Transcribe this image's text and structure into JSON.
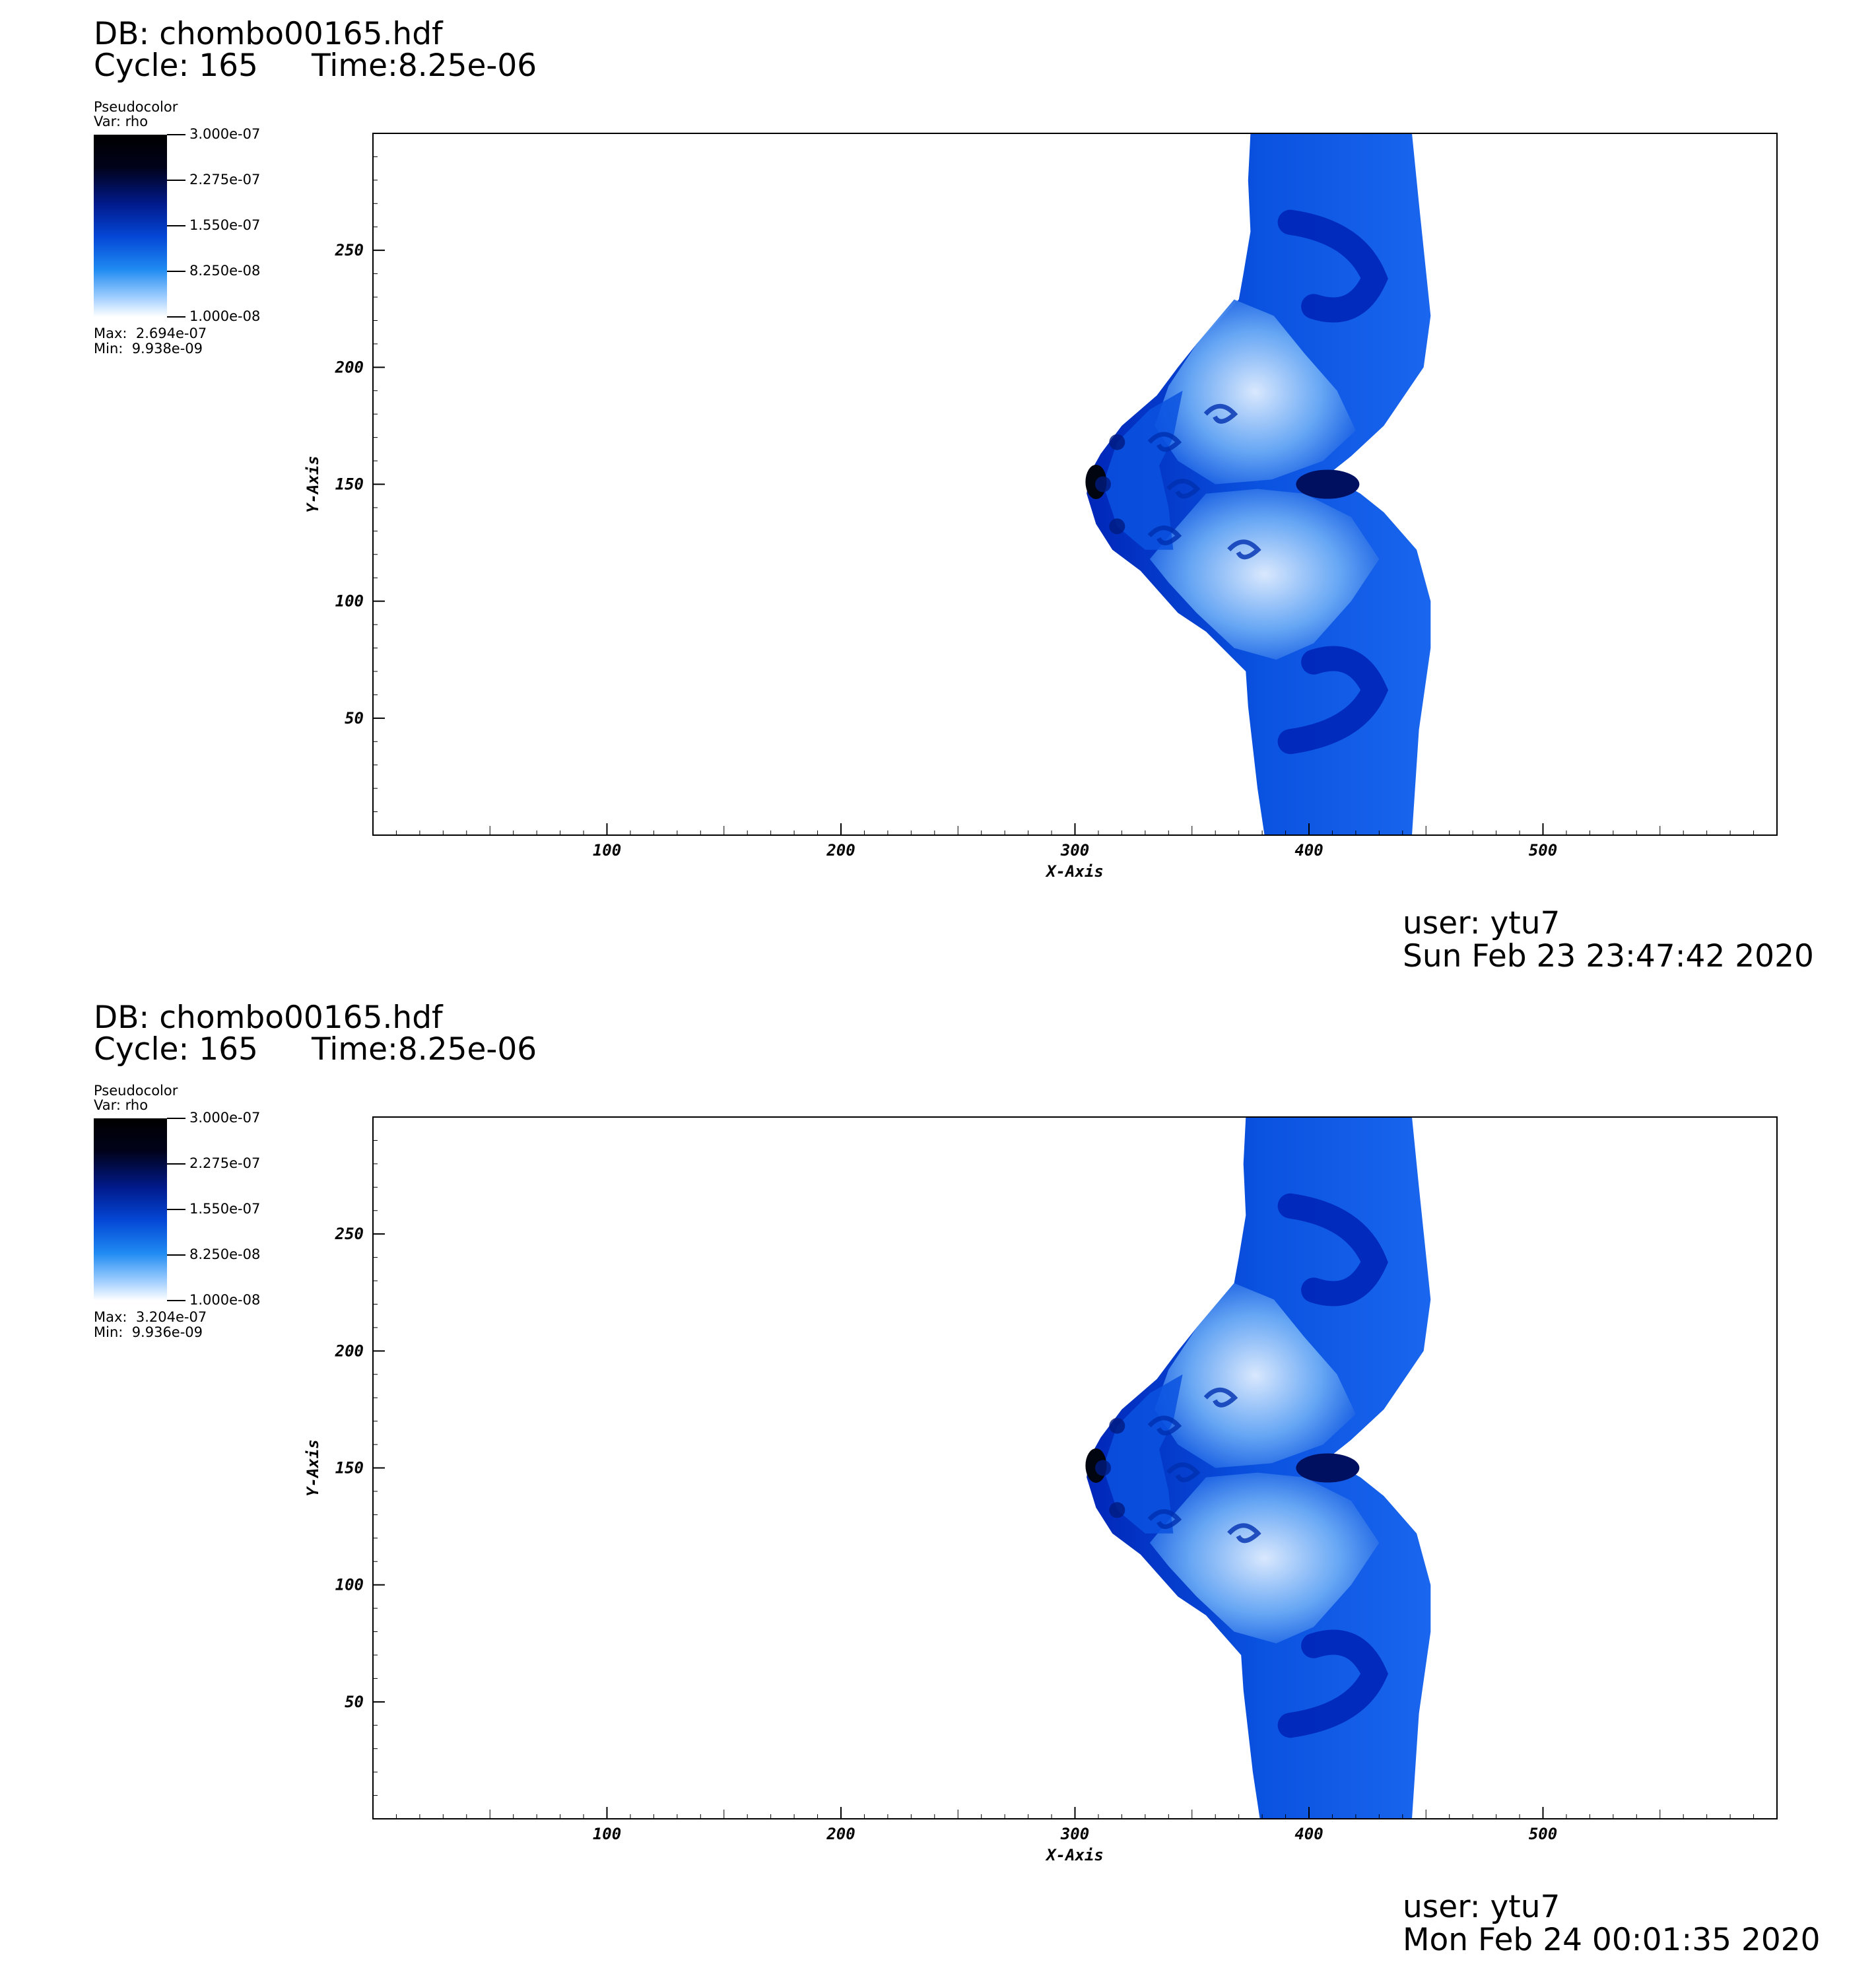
{
  "panels": [
    {
      "db": "DB: chombo00165.hdf",
      "cycle": "Cycle: 165",
      "time": "Time:8.25e-06",
      "legend": {
        "plot_type": "Pseudocolor",
        "var": "Var: rho",
        "ticks": [
          "3.000e-07",
          "2.275e-07",
          "1.550e-07",
          "8.250e-08",
          "1.000e-08"
        ],
        "max": "Max:  2.694e-07",
        "min": "Min:  9.938e-09"
      },
      "user": "user: ytu7",
      "date": "Sun Feb 23 23:47:42 2020",
      "variant": 1
    },
    {
      "db": "DB: chombo00165.hdf",
      "cycle": "Cycle: 165",
      "time": "Time:8.25e-06",
      "legend": {
        "plot_type": "Pseudocolor",
        "var": "Var: rho",
        "ticks": [
          "3.000e-07",
          "2.275e-07",
          "1.550e-07",
          "8.250e-08",
          "1.000e-08"
        ],
        "max": "Max:  3.204e-07",
        "min": "Min:  9.936e-09"
      },
      "user": "user: ytu7",
      "date": "Mon Feb 24 00:01:35 2020",
      "variant": 2
    }
  ],
  "chart_data": [
    {
      "type": "heatmap",
      "title": "",
      "xlabel": "X-Axis",
      "ylabel": "Y-Axis",
      "xlim": [
        0,
        600
      ],
      "ylim": [
        0,
        300
      ],
      "x_ticks": [
        100,
        200,
        300,
        400,
        500
      ],
      "y_ticks": [
        50,
        100,
        150,
        200,
        250
      ],
      "colorscale": {
        "name": "Pseudocolor",
        "variable": "rho",
        "range": [
          1e-08,
          3e-07
        ]
      },
      "data_max": 2.694e-07,
      "data_min": 9.938e-09,
      "colors": {
        "dark": "#000510",
        "deep": "#0026b8",
        "mid": "#0a52e0",
        "light": "#6aaaf5",
        "pale": "#e4f0ff"
      }
    },
    {
      "type": "heatmap",
      "title": "",
      "xlabel": "X-Axis",
      "ylabel": "Y-Axis",
      "xlim": [
        0,
        600
      ],
      "ylim": [
        0,
        300
      ],
      "x_ticks": [
        100,
        200,
        300,
        400,
        500
      ],
      "y_ticks": [
        50,
        100,
        150,
        200,
        250
      ],
      "colorscale": {
        "name": "Pseudocolor",
        "variable": "rho",
        "range": [
          1e-08,
          3e-07
        ]
      },
      "data_max": 3.204e-07,
      "data_min": 9.936e-09,
      "colors": {
        "dark": "#000510",
        "deep": "#0026b8",
        "mid": "#0a52e0",
        "light": "#6aaaf5",
        "pale": "#e4f0ff"
      }
    }
  ]
}
